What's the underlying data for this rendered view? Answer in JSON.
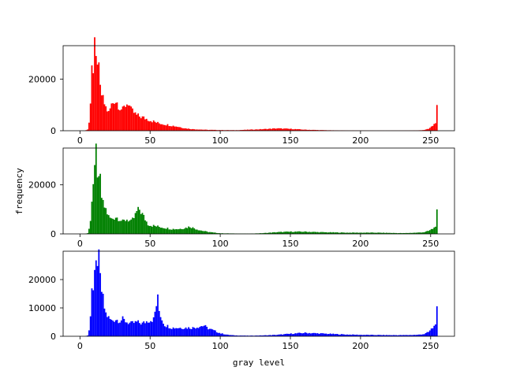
{
  "figure": {
    "ylabel": "frequency",
    "xlabel": "gray level"
  },
  "chart_data": [
    {
      "type": "bar",
      "channel": "red",
      "color": "#ff0000",
      "bins": 256,
      "xlim": [
        -12,
        267
      ],
      "ylim": [
        0,
        33000
      ],
      "xticks": [
        0,
        50,
        100,
        150,
        200,
        250
      ],
      "yticks": [
        0,
        20000
      ],
      "ytick_labels": [
        "0",
        "20000"
      ],
      "xticks_visible": true,
      "key_points": [
        [
          0,
          0
        ],
        [
          3,
          0
        ],
        [
          5,
          500
        ],
        [
          6,
          3000
        ],
        [
          7,
          12000
        ],
        [
          8,
          27000
        ],
        [
          9,
          22000
        ],
        [
          10,
          31000
        ],
        [
          11,
          26000
        ],
        [
          12,
          29000
        ],
        [
          14,
          16000
        ],
        [
          16,
          12000
        ],
        [
          18,
          9000
        ],
        [
          20,
          7000
        ],
        [
          22,
          10000
        ],
        [
          24,
          12000
        ],
        [
          26,
          11000
        ],
        [
          28,
          9000
        ],
        [
          30,
          8000
        ],
        [
          32,
          10000
        ],
        [
          34,
          11000
        ],
        [
          36,
          8000
        ],
        [
          38,
          7000
        ],
        [
          40,
          6000
        ],
        [
          45,
          5000
        ],
        [
          50,
          4000
        ],
        [
          55,
          3000
        ],
        [
          60,
          2500
        ],
        [
          65,
          2000
        ],
        [
          70,
          1500
        ],
        [
          75,
          900
        ],
        [
          80,
          600
        ],
        [
          90,
          350
        ],
        [
          100,
          250
        ],
        [
          110,
          200
        ],
        [
          120,
          400
        ],
        [
          130,
          600
        ],
        [
          140,
          900
        ],
        [
          150,
          700
        ],
        [
          160,
          400
        ],
        [
          170,
          250
        ],
        [
          180,
          150
        ],
        [
          190,
          80
        ],
        [
          200,
          60
        ],
        [
          210,
          40
        ],
        [
          220,
          40
        ],
        [
          230,
          50
        ],
        [
          240,
          100
        ],
        [
          245,
          300
        ],
        [
          248,
          700
        ],
        [
          250,
          1500
        ],
        [
          252,
          2500
        ],
        [
          253,
          3500
        ],
        [
          254,
          8500
        ],
        [
          255,
          0
        ]
      ]
    },
    {
      "type": "bar",
      "channel": "green",
      "color": "#008000",
      "bins": 256,
      "xlim": [
        -12,
        267
      ],
      "ylim": [
        0,
        35000
      ],
      "xticks": [
        0,
        50,
        100,
        150,
        200,
        250
      ],
      "yticks": [
        0,
        20000
      ],
      "ytick_labels": [
        "0",
        "20000"
      ],
      "xticks_visible": true,
      "key_points": [
        [
          0,
          0
        ],
        [
          3,
          0
        ],
        [
          5,
          300
        ],
        [
          6,
          2000
        ],
        [
          7,
          6000
        ],
        [
          8,
          14000
        ],
        [
          9,
          20000
        ],
        [
          10,
          24000
        ],
        [
          11,
          33000
        ],
        [
          12,
          26000
        ],
        [
          13,
          20000
        ],
        [
          14,
          22000
        ],
        [
          15,
          15000
        ],
        [
          16,
          12000
        ],
        [
          18,
          10000
        ],
        [
          20,
          7000
        ],
        [
          22,
          6000
        ],
        [
          25,
          7000
        ],
        [
          28,
          6000
        ],
        [
          30,
          5000
        ],
        [
          33,
          6000
        ],
        [
          36,
          5000
        ],
        [
          38,
          6500
        ],
        [
          40,
          9000
        ],
        [
          42,
          10000
        ],
        [
          44,
          8000
        ],
        [
          46,
          6000
        ],
        [
          48,
          4000
        ],
        [
          50,
          3500
        ],
        [
          55,
          3000
        ],
        [
          60,
          2500
        ],
        [
          65,
          2000
        ],
        [
          70,
          2000
        ],
        [
          75,
          2500
        ],
        [
          78,
          3000
        ],
        [
          80,
          2500
        ],
        [
          85,
          1500
        ],
        [
          90,
          900
        ],
        [
          95,
          500
        ],
        [
          100,
          250
        ],
        [
          110,
          150
        ],
        [
          120,
          100
        ],
        [
          130,
          300
        ],
        [
          140,
          700
        ],
        [
          150,
          900
        ],
        [
          160,
          900
        ],
        [
          170,
          700
        ],
        [
          180,
          600
        ],
        [
          190,
          500
        ],
        [
          200,
          500
        ],
        [
          210,
          500
        ],
        [
          220,
          400
        ],
        [
          230,
          300
        ],
        [
          240,
          500
        ],
        [
          245,
          700
        ],
        [
          248,
          1200
        ],
        [
          250,
          1800
        ],
        [
          252,
          2500
        ],
        [
          253,
          3500
        ],
        [
          254,
          8500
        ],
        [
          255,
          0
        ]
      ]
    },
    {
      "type": "bar",
      "channel": "blue",
      "color": "#0000ff",
      "bins": 256,
      "xlim": [
        -12,
        267
      ],
      "ylim": [
        0,
        30000
      ],
      "xticks": [
        0,
        50,
        100,
        150,
        200,
        250
      ],
      "yticks": [
        0,
        10000,
        20000
      ],
      "ytick_labels": [
        "0",
        "10000",
        "20000"
      ],
      "xticks_visible": true,
      "key_points": [
        [
          0,
          0
        ],
        [
          3,
          0
        ],
        [
          5,
          300
        ],
        [
          6,
          2000
        ],
        [
          7,
          8000
        ],
        [
          8,
          18000
        ],
        [
          9,
          16000
        ],
        [
          10,
          20000
        ],
        [
          11,
          24000
        ],
        [
          12,
          28000
        ],
        [
          13,
          26000
        ],
        [
          14,
          20000
        ],
        [
          15,
          16000
        ],
        [
          16,
          13000
        ],
        [
          17,
          10000
        ],
        [
          18,
          8000
        ],
        [
          20,
          6500
        ],
        [
          22,
          5500
        ],
        [
          25,
          6000
        ],
        [
          28,
          5500
        ],
        [
          30,
          6000
        ],
        [
          33,
          5000
        ],
        [
          36,
          4500
        ],
        [
          40,
          5000
        ],
        [
          44,
          4500
        ],
        [
          48,
          5500
        ],
        [
          52,
          6000
        ],
        [
          54,
          11000
        ],
        [
          55,
          13000
        ],
        [
          56,
          9000
        ],
        [
          58,
          6000
        ],
        [
          60,
          4000
        ],
        [
          65,
          3000
        ],
        [
          70,
          3000
        ],
        [
          75,
          3000
        ],
        [
          80,
          3000
        ],
        [
          85,
          3500
        ],
        [
          88,
          3800
        ],
        [
          90,
          3000
        ],
        [
          95,
          2000
        ],
        [
          100,
          1000
        ],
        [
          105,
          500
        ],
        [
          110,
          300
        ],
        [
          120,
          200
        ],
        [
          130,
          300
        ],
        [
          140,
          500
        ],
        [
          150,
          900
        ],
        [
          160,
          1200
        ],
        [
          170,
          1000
        ],
        [
          180,
          800
        ],
        [
          190,
          600
        ],
        [
          200,
          500
        ],
        [
          210,
          450
        ],
        [
          220,
          400
        ],
        [
          230,
          400
        ],
        [
          240,
          500
        ],
        [
          245,
          800
        ],
        [
          248,
          1500
        ],
        [
          250,
          2500
        ],
        [
          252,
          3500
        ],
        [
          253,
          5000
        ],
        [
          254,
          9000
        ],
        [
          255,
          0
        ]
      ]
    }
  ]
}
